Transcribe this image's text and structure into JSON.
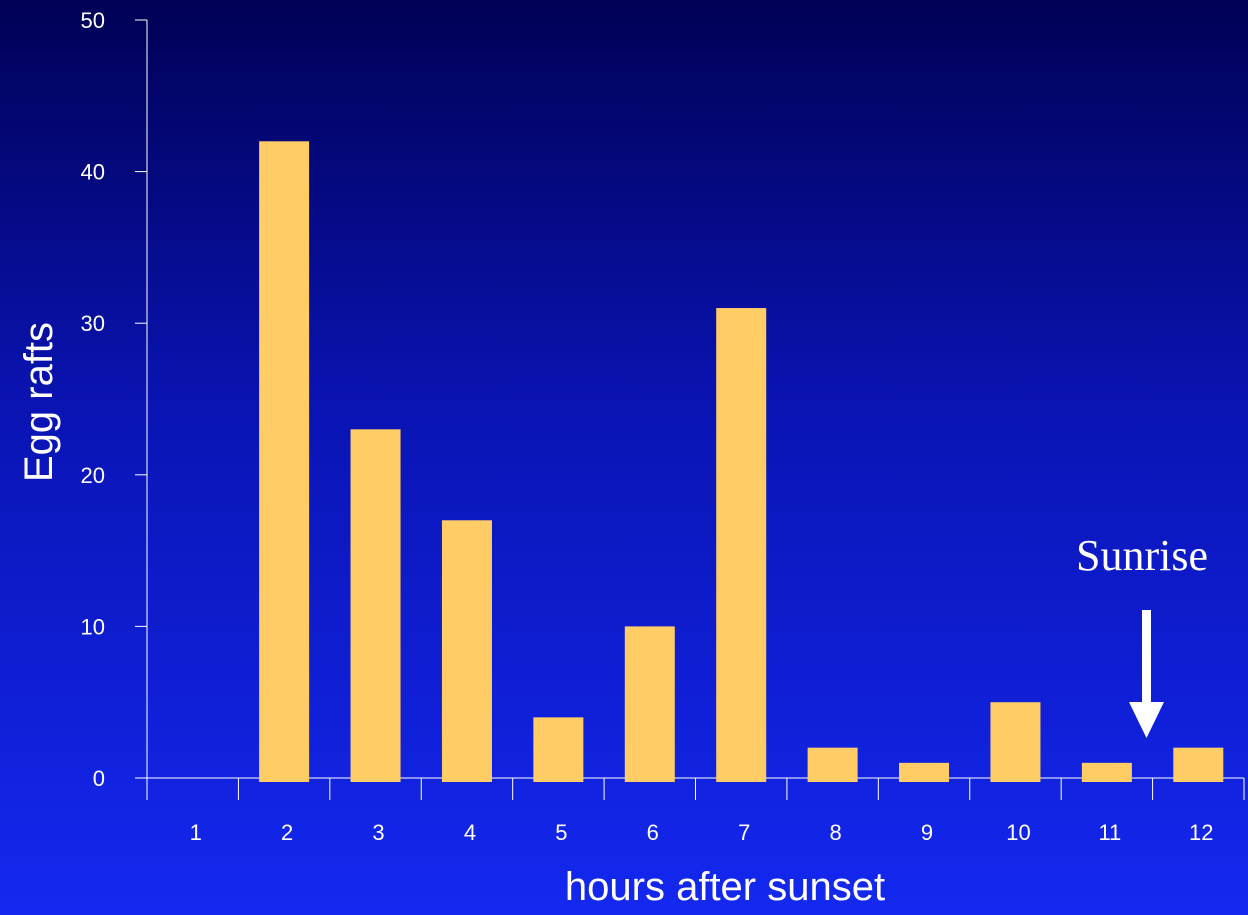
{
  "chart_data": {
    "type": "bar",
    "categories": [
      "1",
      "2",
      "3",
      "4",
      "5",
      "6",
      "7",
      "8",
      "9",
      "10",
      "11",
      "12"
    ],
    "values": [
      0,
      42,
      23,
      17,
      4,
      10,
      31,
      2,
      1,
      5,
      1,
      2
    ],
    "xlabel": "hours after sunset",
    "ylabel": "Egg rafts",
    "ylim": [
      0,
      50
    ],
    "yticks": [
      0,
      10,
      20,
      30,
      40,
      50
    ],
    "grid": false,
    "colors": {
      "bar": "#FFCC66",
      "axis": "#ffffff",
      "text": "#ffffff"
    },
    "annotation": {
      "text": "Sunrise",
      "target_category": "11",
      "arrow": "down-arrow"
    }
  }
}
